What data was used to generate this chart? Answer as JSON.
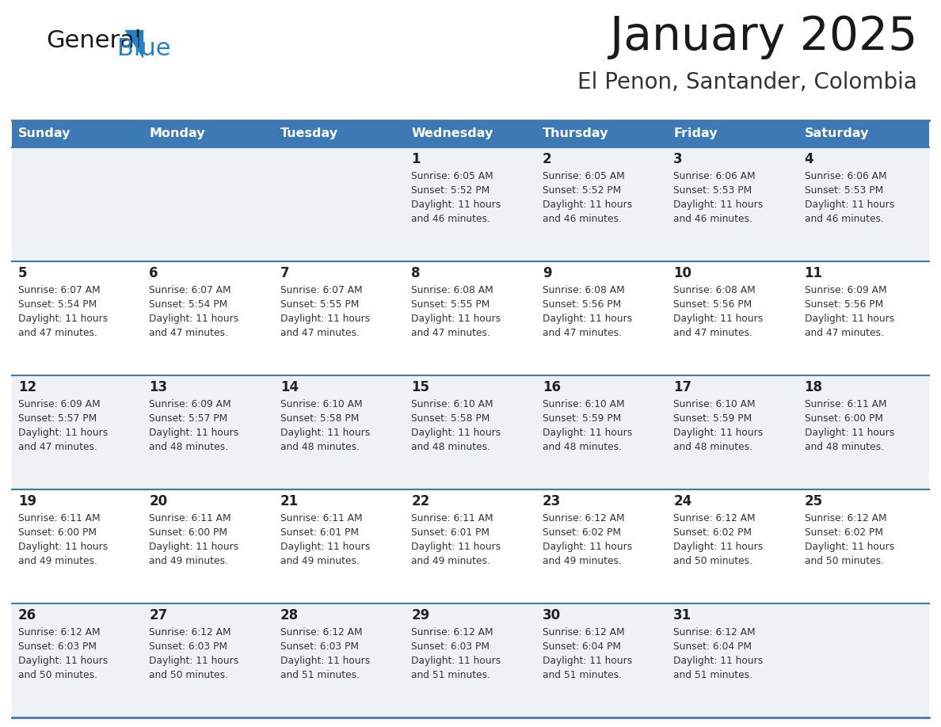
{
  "title": "January 2025",
  "subtitle": "El Penon, Santander, Colombia",
  "header_bg": "#3d7ab5",
  "header_text": "#ffffff",
  "row_bg_odd": "#eef2f7",
  "row_bg_even": "#ffffff",
  "separator_color": "#3d7ab5",
  "day_headers": [
    "Sunday",
    "Monday",
    "Tuesday",
    "Wednesday",
    "Thursday",
    "Friday",
    "Saturday"
  ],
  "days": [
    {
      "day": 1,
      "col": 3,
      "row": 0,
      "sunrise": "6:05 AM",
      "sunset": "5:52 PM",
      "daylight_hours": 11,
      "daylight_minutes": 46
    },
    {
      "day": 2,
      "col": 4,
      "row": 0,
      "sunrise": "6:05 AM",
      "sunset": "5:52 PM",
      "daylight_hours": 11,
      "daylight_minutes": 46
    },
    {
      "day": 3,
      "col": 5,
      "row": 0,
      "sunrise": "6:06 AM",
      "sunset": "5:53 PM",
      "daylight_hours": 11,
      "daylight_minutes": 46
    },
    {
      "day": 4,
      "col": 6,
      "row": 0,
      "sunrise": "6:06 AM",
      "sunset": "5:53 PM",
      "daylight_hours": 11,
      "daylight_minutes": 46
    },
    {
      "day": 5,
      "col": 0,
      "row": 1,
      "sunrise": "6:07 AM",
      "sunset": "5:54 PM",
      "daylight_hours": 11,
      "daylight_minutes": 47
    },
    {
      "day": 6,
      "col": 1,
      "row": 1,
      "sunrise": "6:07 AM",
      "sunset": "5:54 PM",
      "daylight_hours": 11,
      "daylight_minutes": 47
    },
    {
      "day": 7,
      "col": 2,
      "row": 1,
      "sunrise": "6:07 AM",
      "sunset": "5:55 PM",
      "daylight_hours": 11,
      "daylight_minutes": 47
    },
    {
      "day": 8,
      "col": 3,
      "row": 1,
      "sunrise": "6:08 AM",
      "sunset": "5:55 PM",
      "daylight_hours": 11,
      "daylight_minutes": 47
    },
    {
      "day": 9,
      "col": 4,
      "row": 1,
      "sunrise": "6:08 AM",
      "sunset": "5:56 PM",
      "daylight_hours": 11,
      "daylight_minutes": 47
    },
    {
      "day": 10,
      "col": 5,
      "row": 1,
      "sunrise": "6:08 AM",
      "sunset": "5:56 PM",
      "daylight_hours": 11,
      "daylight_minutes": 47
    },
    {
      "day": 11,
      "col": 6,
      "row": 1,
      "sunrise": "6:09 AM",
      "sunset": "5:56 PM",
      "daylight_hours": 11,
      "daylight_minutes": 47
    },
    {
      "day": 12,
      "col": 0,
      "row": 2,
      "sunrise": "6:09 AM",
      "sunset": "5:57 PM",
      "daylight_hours": 11,
      "daylight_minutes": 47
    },
    {
      "day": 13,
      "col": 1,
      "row": 2,
      "sunrise": "6:09 AM",
      "sunset": "5:57 PM",
      "daylight_hours": 11,
      "daylight_minutes": 48
    },
    {
      "day": 14,
      "col": 2,
      "row": 2,
      "sunrise": "6:10 AM",
      "sunset": "5:58 PM",
      "daylight_hours": 11,
      "daylight_minutes": 48
    },
    {
      "day": 15,
      "col": 3,
      "row": 2,
      "sunrise": "6:10 AM",
      "sunset": "5:58 PM",
      "daylight_hours": 11,
      "daylight_minutes": 48
    },
    {
      "day": 16,
      "col": 4,
      "row": 2,
      "sunrise": "6:10 AM",
      "sunset": "5:59 PM",
      "daylight_hours": 11,
      "daylight_minutes": 48
    },
    {
      "day": 17,
      "col": 5,
      "row": 2,
      "sunrise": "6:10 AM",
      "sunset": "5:59 PM",
      "daylight_hours": 11,
      "daylight_minutes": 48
    },
    {
      "day": 18,
      "col": 6,
      "row": 2,
      "sunrise": "6:11 AM",
      "sunset": "6:00 PM",
      "daylight_hours": 11,
      "daylight_minutes": 48
    },
    {
      "day": 19,
      "col": 0,
      "row": 3,
      "sunrise": "6:11 AM",
      "sunset": "6:00 PM",
      "daylight_hours": 11,
      "daylight_minutes": 49
    },
    {
      "day": 20,
      "col": 1,
      "row": 3,
      "sunrise": "6:11 AM",
      "sunset": "6:00 PM",
      "daylight_hours": 11,
      "daylight_minutes": 49
    },
    {
      "day": 21,
      "col": 2,
      "row": 3,
      "sunrise": "6:11 AM",
      "sunset": "6:01 PM",
      "daylight_hours": 11,
      "daylight_minutes": 49
    },
    {
      "day": 22,
      "col": 3,
      "row": 3,
      "sunrise": "6:11 AM",
      "sunset": "6:01 PM",
      "daylight_hours": 11,
      "daylight_minutes": 49
    },
    {
      "day": 23,
      "col": 4,
      "row": 3,
      "sunrise": "6:12 AM",
      "sunset": "6:02 PM",
      "daylight_hours": 11,
      "daylight_minutes": 49
    },
    {
      "day": 24,
      "col": 5,
      "row": 3,
      "sunrise": "6:12 AM",
      "sunset": "6:02 PM",
      "daylight_hours": 11,
      "daylight_minutes": 50
    },
    {
      "day": 25,
      "col": 6,
      "row": 3,
      "sunrise": "6:12 AM",
      "sunset": "6:02 PM",
      "daylight_hours": 11,
      "daylight_minutes": 50
    },
    {
      "day": 26,
      "col": 0,
      "row": 4,
      "sunrise": "6:12 AM",
      "sunset": "6:03 PM",
      "daylight_hours": 11,
      "daylight_minutes": 50
    },
    {
      "day": 27,
      "col": 1,
      "row": 4,
      "sunrise": "6:12 AM",
      "sunset": "6:03 PM",
      "daylight_hours": 11,
      "daylight_minutes": 50
    },
    {
      "day": 28,
      "col": 2,
      "row": 4,
      "sunrise": "6:12 AM",
      "sunset": "6:03 PM",
      "daylight_hours": 11,
      "daylight_minutes": 51
    },
    {
      "day": 29,
      "col": 3,
      "row": 4,
      "sunrise": "6:12 AM",
      "sunset": "6:03 PM",
      "daylight_hours": 11,
      "daylight_minutes": 51
    },
    {
      "day": 30,
      "col": 4,
      "row": 4,
      "sunrise": "6:12 AM",
      "sunset": "6:04 PM",
      "daylight_hours": 11,
      "daylight_minutes": 51
    },
    {
      "day": 31,
      "col": 5,
      "row": 4,
      "sunrise": "6:12 AM",
      "sunset": "6:04 PM",
      "daylight_hours": 11,
      "daylight_minutes": 51
    }
  ],
  "num_rows": 5,
  "num_cols": 7,
  "logo_general_color": "#1a1a1a",
  "logo_blue_color": "#2880c4",
  "logo_triangle_color": "#2880c4",
  "title_color": "#1a1a1a",
  "subtitle_color": "#333333"
}
